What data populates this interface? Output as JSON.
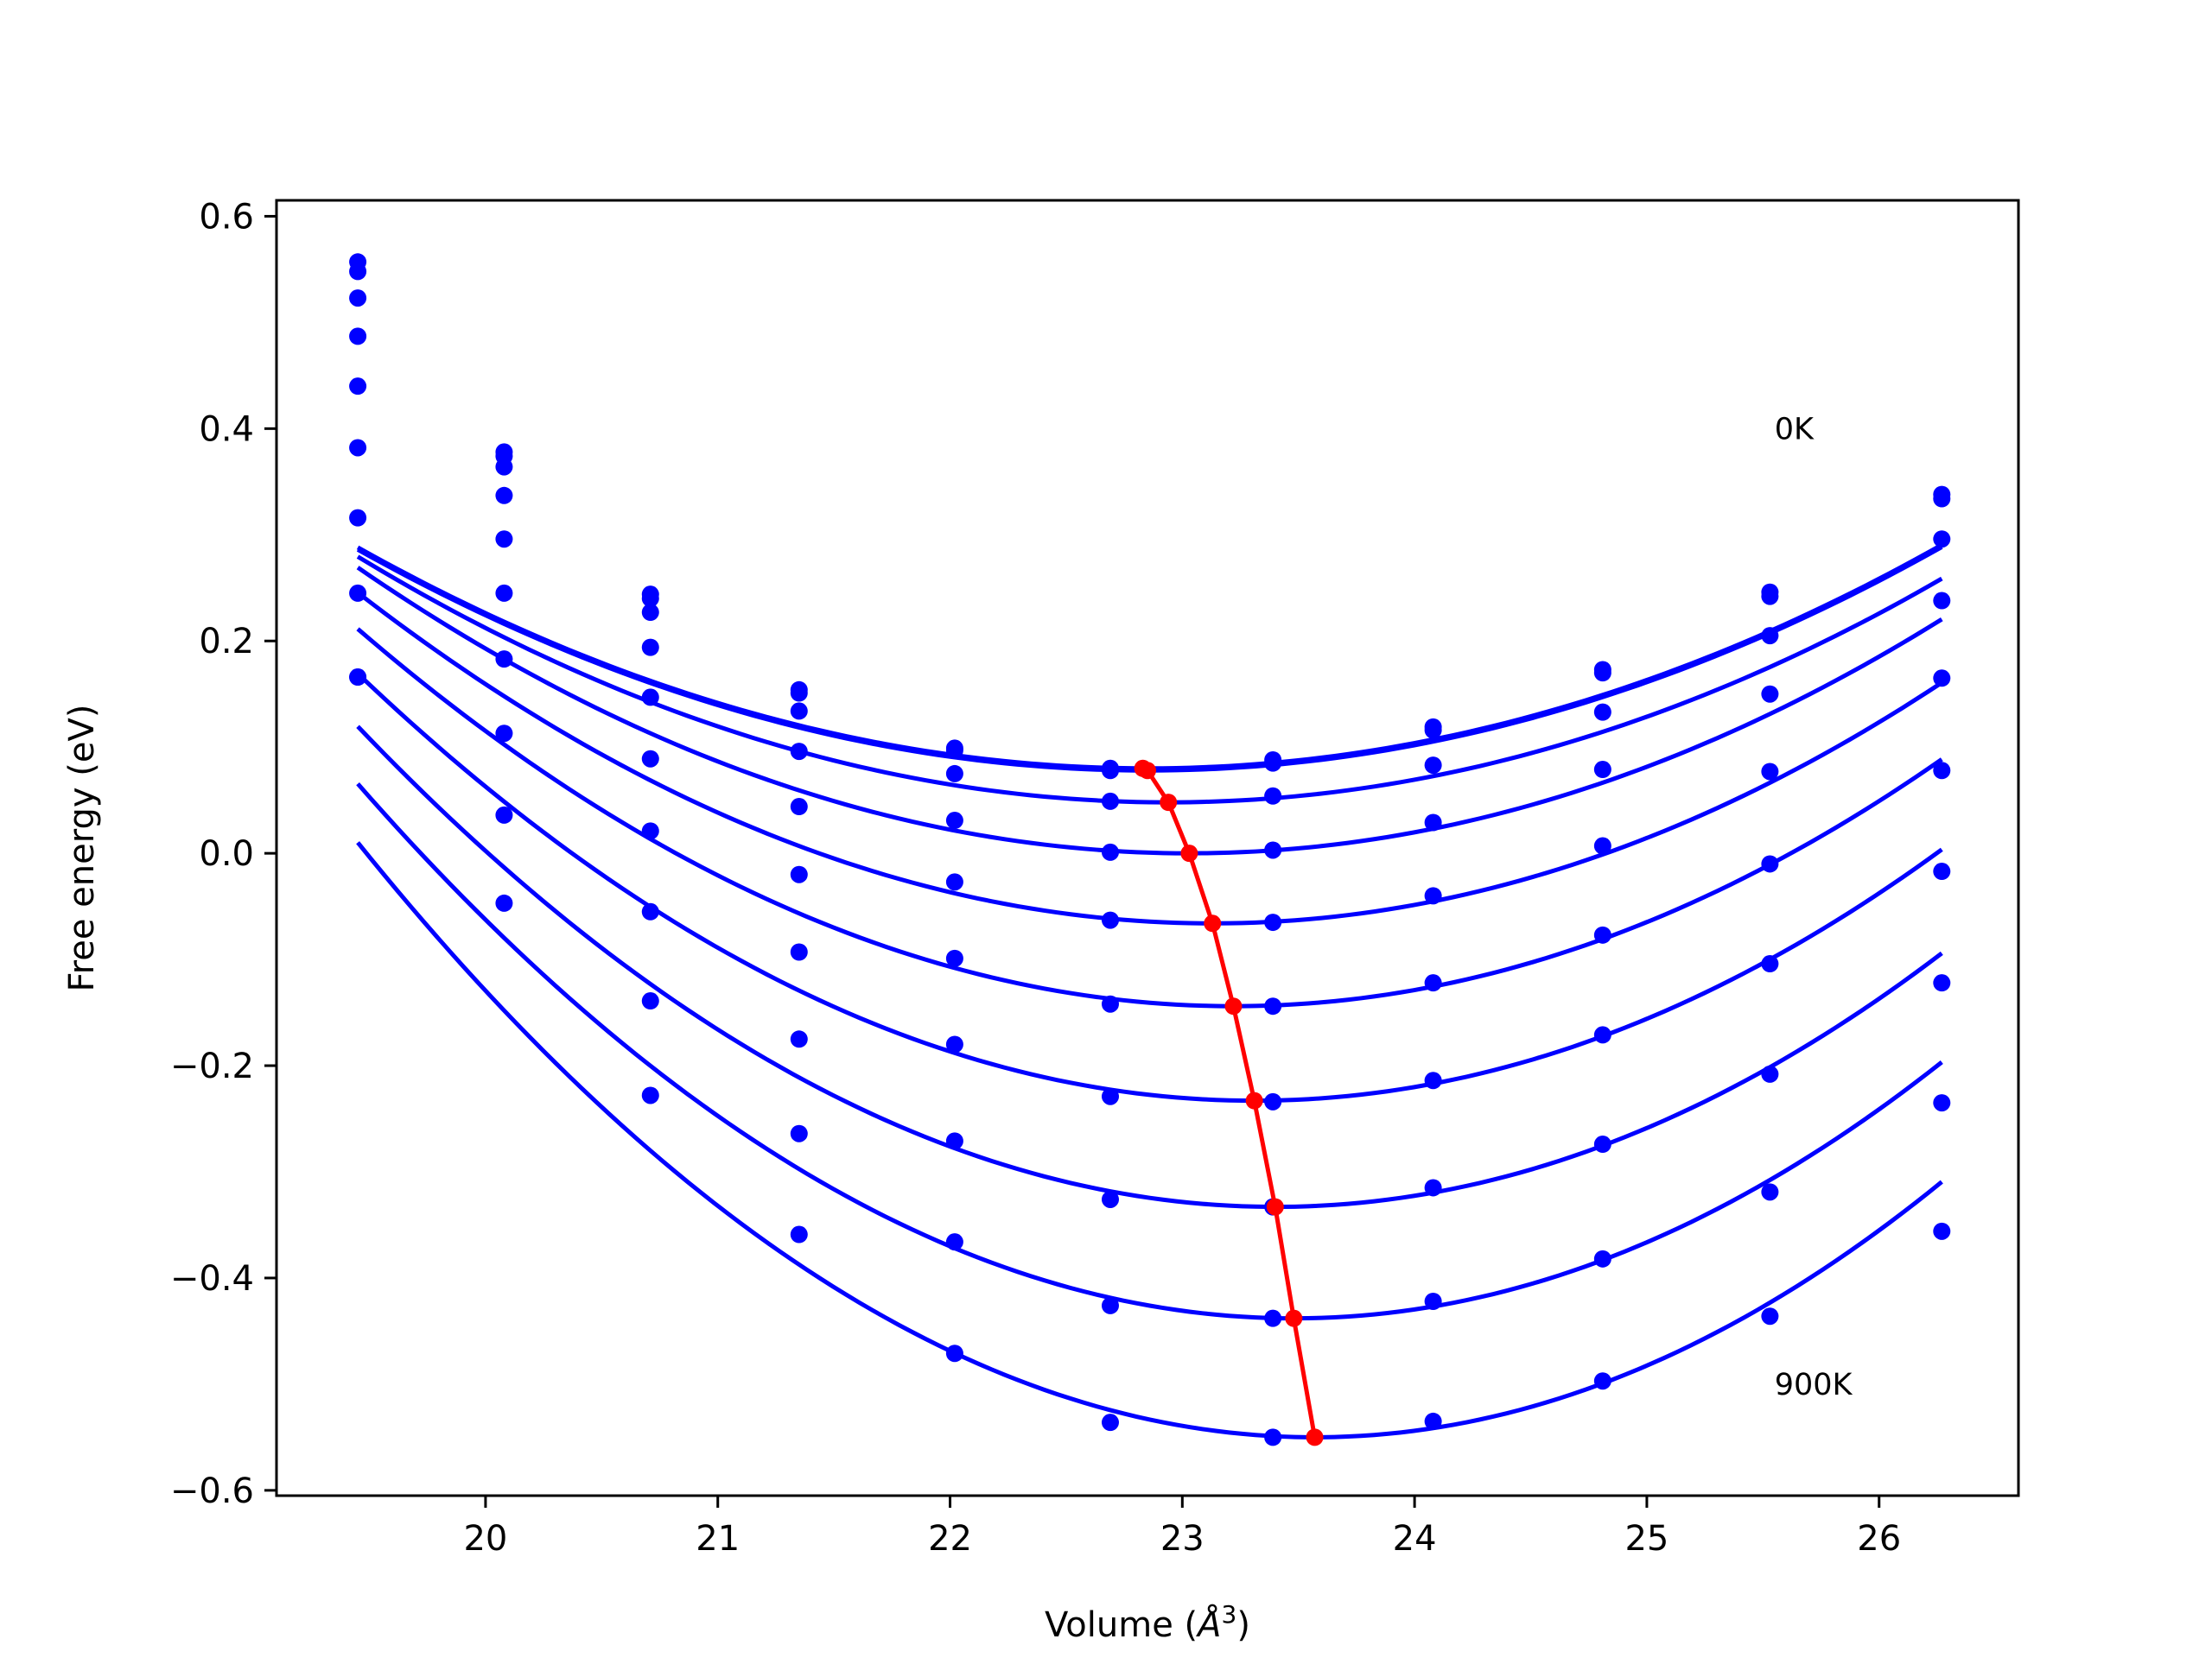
{
  "chart_data": {
    "type": "line",
    "title": "",
    "xlabel_main": "Volume (",
    "xlabel_unit": "Å",
    "xlabel_exp": "3",
    "xlabel_close": ")",
    "ylabel": "Free energy (eV)",
    "xlim": [
      19.1,
      26.6
    ],
    "ylim": [
      -0.605,
      0.615
    ],
    "xticks": [
      {
        "value": 20,
        "label": "20"
      },
      {
        "value": 21,
        "label": "21"
      },
      {
        "value": 22,
        "label": "22"
      },
      {
        "value": 23,
        "label": "23"
      },
      {
        "value": 24,
        "label": "24"
      },
      {
        "value": 25,
        "label": "25"
      },
      {
        "value": 26,
        "label": "26"
      }
    ],
    "yticks": [
      {
        "value": 0.6,
        "label": "0.6"
      },
      {
        "value": 0.4,
        "label": "0.4"
      },
      {
        "value": 0.2,
        "label": "0.2"
      },
      {
        "value": 0.0,
        "label": "0.0"
      },
      {
        "value": -0.2,
        "label": "−0.2"
      },
      {
        "value": -0.4,
        "label": "−0.4"
      },
      {
        "value": -0.6,
        "label": "−0.6"
      }
    ],
    "grid": false,
    "legend": "none",
    "colors": {
      "curves": "#0000ff",
      "minima": "#ff0000"
    },
    "annotations": [
      {
        "text": "0K",
        "x": 25.55,
        "y": 0.39
      },
      {
        "text": "900K",
        "x": 25.55,
        "y": -0.51
      }
    ],
    "x": [
      19.45,
      20.08,
      20.71,
      21.35,
      22.02,
      22.69,
      23.39,
      24.08,
      24.81,
      25.53,
      26.27
    ],
    "series": [
      {
        "values": [
          0.557,
          0.378,
          0.244,
          0.154,
          0.099,
          0.08,
          0.088,
          0.119,
          0.173,
          0.246,
          0.338
        ],
        "fit": {
          "v0": 22.85,
          "f0": 0.08,
          "a": 0.018
        }
      },
      {
        "values": [
          0.548,
          0.374,
          0.24,
          0.151,
          0.097,
          0.078,
          0.085,
          0.116,
          0.17,
          0.242,
          0.334
        ],
        "fit": {
          "v0": 22.85,
          "f0": 0.078,
          "a": 0.018
        }
      },
      {
        "values": [
          0.523,
          0.364,
          0.227,
          0.134,
          0.075,
          0.049,
          0.054,
          0.083,
          0.133,
          0.205,
          0.296
        ],
        "fit": {
          "v0": 22.94,
          "f0": 0.048,
          "a": 0.019
        }
      },
      {
        "values": [
          0.487,
          0.337,
          0.194,
          0.096,
          0.031,
          0.001,
          0.003,
          0.029,
          0.079,
          0.15,
          0.238
        ],
        "fit": {
          "v0": 23.03,
          "f0": 0.0,
          "a": 0.021
        }
      },
      {
        "values": [
          0.44,
          0.296,
          0.147,
          0.044,
          -0.027,
          -0.063,
          -0.065,
          -0.04,
          0.007,
          0.077,
          0.165
        ],
        "fit": {
          "v0": 23.13,
          "f0": -0.066,
          "a": 0.023
        }
      },
      {
        "values": [
          0.382,
          0.245,
          0.089,
          -0.02,
          -0.099,
          -0.142,
          -0.144,
          -0.122,
          -0.077,
          -0.01,
          0.078
        ],
        "fit": {
          "v0": 23.22,
          "f0": -0.144,
          "a": 0.025
        }
      },
      {
        "values": [
          0.316,
          0.183,
          0.021,
          -0.093,
          -0.18,
          -0.229,
          -0.234,
          -0.214,
          -0.171,
          -0.104,
          -0.017
        ],
        "fit": {
          "v0": 23.31,
          "f0": -0.233,
          "a": 0.027
        }
      },
      {
        "values": [
          0.245,
          0.113,
          -0.055,
          -0.175,
          -0.271,
          -0.326,
          -0.333,
          -0.315,
          -0.274,
          -0.208,
          -0.122
        ],
        "fit": {
          "v0": 23.4,
          "f0": -0.333,
          "a": 0.029
        }
      },
      {
        "values": [
          0.166,
          0.036,
          -0.139,
          -0.264,
          -0.366,
          -0.426,
          -0.438,
          -0.422,
          -0.382,
          -0.319,
          -0.235
        ],
        "fit": {
          "v0": 23.48,
          "f0": -0.438,
          "a": 0.031
        }
      },
      {
        "values": [
          0.166,
          -0.047,
          -0.228,
          -0.359,
          -0.471,
          -0.536,
          -0.55,
          -0.535,
          -0.497,
          -0.436,
          -0.356
        ],
        "fit": {
          "v0": 23.57,
          "f0": -0.55,
          "a": 0.033
        }
      }
    ],
    "minima_path": {
      "x": [
        22.83,
        22.85,
        22.94,
        23.03,
        23.13,
        23.22,
        23.31,
        23.4,
        23.48,
        23.57
      ],
      "y": [
        0.08,
        0.078,
        0.048,
        0.0,
        -0.066,
        -0.144,
        -0.233,
        -0.333,
        -0.438,
        -0.55
      ]
    }
  }
}
